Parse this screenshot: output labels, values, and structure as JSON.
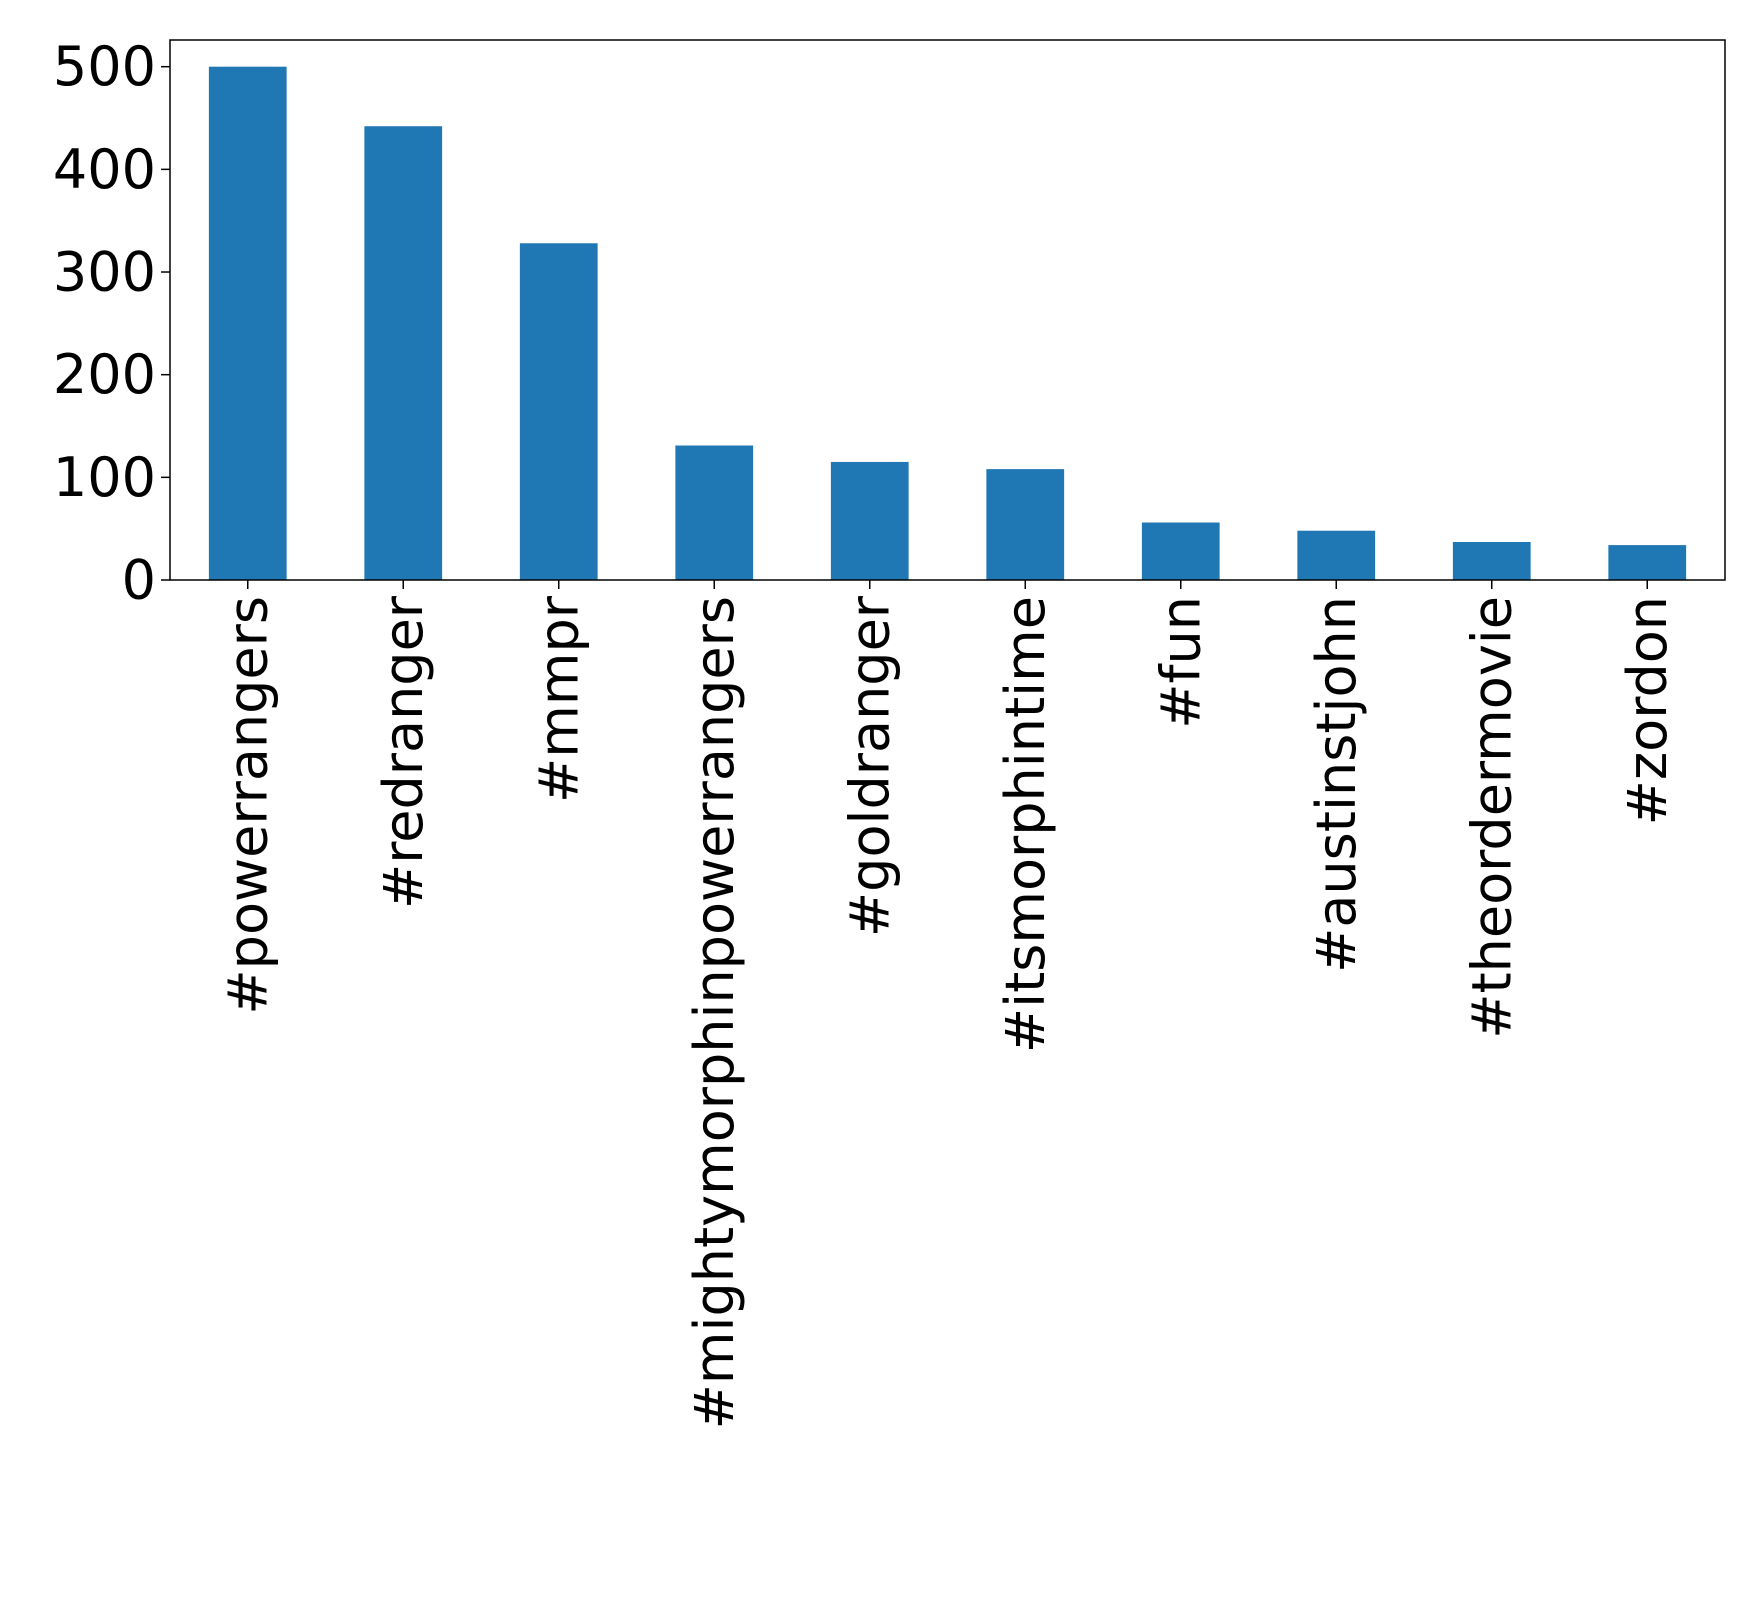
{
  "chart_data": {
    "type": "bar",
    "title": "",
    "xlabel": "",
    "ylabel": "",
    "categories": [
      "#powerrangers",
      "#redranger",
      "#mmpr",
      "#mightymorphinpowerrangers",
      "#goldranger",
      "#itsmorphintime",
      "#fun",
      "#austinstjohn",
      "#theordermovie",
      "#zordon"
    ],
    "values": [
      500,
      442,
      328,
      131,
      115,
      108,
      56,
      48,
      37,
      34
    ],
    "ylim": [
      0,
      526
    ],
    "yticks": [
      0,
      100,
      200,
      300,
      400,
      500
    ],
    "bar_color": "#1f77b4",
    "grid": false,
    "legend": "none"
  }
}
